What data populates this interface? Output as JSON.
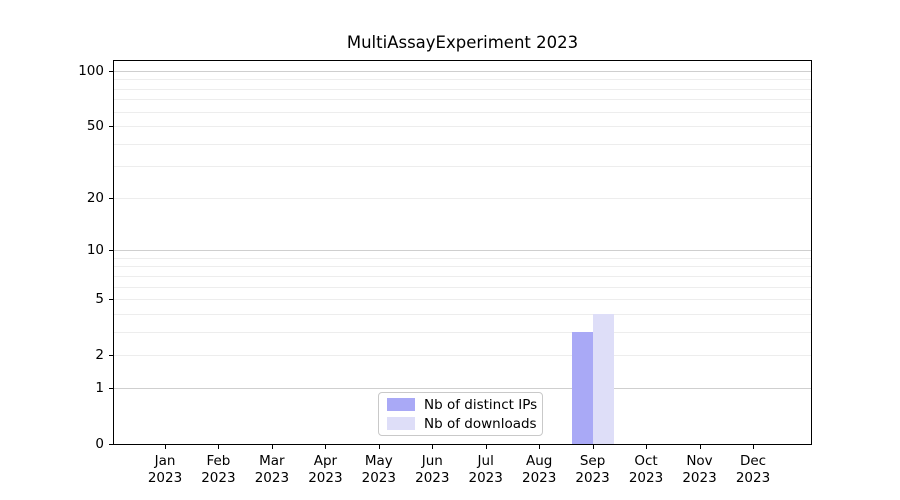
{
  "chart_data": {
    "type": "bar",
    "title": "MultiAssayExperiment 2023",
    "scale": "log1p",
    "categories": [
      "Jan",
      "Feb",
      "Mar",
      "Apr",
      "May",
      "Jun",
      "Jul",
      "Aug",
      "Sep",
      "Oct",
      "Nov",
      "Dec"
    ],
    "category_year": "2023",
    "series": [
      {
        "name": "Nb of distinct IPs",
        "color": "#a9a9f6",
        "values": [
          0,
          0,
          0,
          0,
          0,
          0,
          0,
          0,
          3,
          0,
          0,
          0
        ]
      },
      {
        "name": "Nb of downloads",
        "color": "#dedef8",
        "values": [
          0,
          0,
          0,
          0,
          0,
          0,
          0,
          0,
          4,
          0,
          0,
          0
        ]
      }
    ],
    "yticks": [
      0,
      1,
      2,
      5,
      10,
      20,
      50,
      100
    ],
    "major_gridlines": [
      1,
      10,
      100
    ],
    "minor_gridlines": [
      2,
      3,
      4,
      5,
      6,
      7,
      8,
      9,
      20,
      30,
      40,
      50,
      60,
      70,
      80,
      90
    ],
    "ylim": [
      0,
      113
    ],
    "xlabel": "",
    "ylabel": "",
    "grid": "horizontal",
    "legend_position": "lower center",
    "colors": {
      "axis": "#000000",
      "major_grid": "#cfcfcf",
      "minor_grid": "#ededed",
      "background": "#ffffff",
      "text": "#000000"
    }
  }
}
